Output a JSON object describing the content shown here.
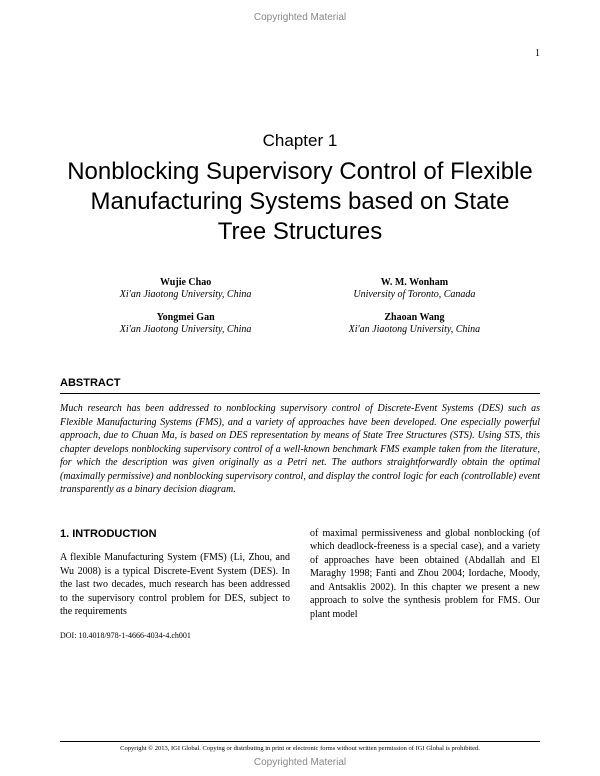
{
  "header_label": "Copyrighted Material",
  "page_number": "1",
  "chapter_label": "Chapter  1",
  "title": "Nonblocking Supervisory Control of Flexible Manufacturing Systems based on State Tree Structures",
  "authors": {
    "left": [
      {
        "name": "Wujie Chao",
        "affil": "Xi'an Jiaotong University, China"
      },
      {
        "name": "Yongmei Gan",
        "affil": "Xi'an Jiaotong University, China"
      }
    ],
    "right": [
      {
        "name": "W. M. Wonham",
        "affil": "University of Toronto, Canada"
      },
      {
        "name": "Zhaoan Wang",
        "affil": "Xi'an Jiaotong University, China"
      }
    ]
  },
  "abstract_heading": "ABSTRACT",
  "abstract_text": "Much research has been addressed to nonblocking supervisory control of Discrete-Event Systems (DES) such as Flexible Manufacturing Systems (FMS), and a variety of approaches have been developed. One especially powerful approach, due to Chuan Ma, is based on DES representation by means of State Tree Structures (STS). Using STS, this chapter develops nonblocking supervisory control of a well-known benchmark FMS example taken from the literature, for which the description was given originally as a Petri net. The authors straightforwardly obtain the optimal (maximally permissive) and nonblocking supervisory control, and display the control logic for each (controllable) event transparently as a binary decision diagram.",
  "section_heading": "1. INTRODUCTION",
  "col1_text": "A flexible Manufacturing System (FMS) (Li, Zhou, and Wu 2008) is a typical Discrete-Event System (DES). In the last two decades, much research has been addressed to the supervisory control problem for DES, subject to the requirements",
  "col2_text": "of maximal permissiveness and global nonblocking (of which deadlock-freeness is a special case), and a variety of approaches have been obtained (Abdallah and El Maraghy 1998; Fanti and Zhou 2004; Iordache, Moody, and Antsaklis 2002). In this chapter we present a new approach to solve the synthesis problem for FMS. Our plant model",
  "doi": "DOI: 10.4018/978-1-4666-4034-4.ch001",
  "copyright": "Copyright © 2013, IGI Global. Copying or distributing in print or electronic forms without written permission of IGI Global is prohibited.",
  "footer_label": "Copyrighted Material"
}
